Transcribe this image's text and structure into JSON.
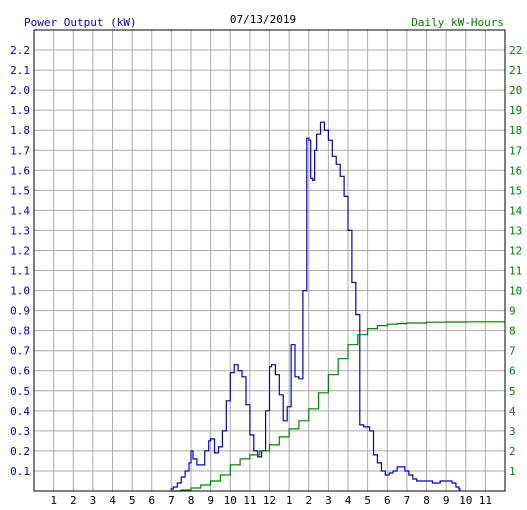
{
  "chart_data": {
    "type": "line",
    "title": "07/13/2019",
    "left_axis_label": "Power Output (kW)",
    "right_axis_label": "Daily kW-Hours",
    "x_tick_labels": [
      "1",
      "2",
      "3",
      "4",
      "5",
      "6",
      "7",
      "8",
      "9",
      "10",
      "11",
      "12",
      "1",
      "2",
      "3",
      "4",
      "5",
      "6",
      "7",
      "8",
      "9",
      "10",
      "11"
    ],
    "y_left_ticks": [
      "0.1",
      "0.2",
      "0.3",
      "0.4",
      "0.5",
      "0.6",
      "0.7",
      "0.8",
      "0.9",
      "1.0",
      "1.1",
      "1.2",
      "1.3",
      "1.4",
      "1.5",
      "1.6",
      "1.7",
      "1.8",
      "1.9",
      "2.0",
      "2.1",
      "2.2"
    ],
    "y_right_ticks": [
      "1",
      "2",
      "3",
      "4",
      "5",
      "6",
      "7",
      "8",
      "9",
      "10",
      "11",
      "12",
      "13",
      "14",
      "15",
      "16",
      "17",
      "18",
      "19",
      "20",
      "21",
      "22"
    ],
    "x_range_hours": [
      0,
      24
    ],
    "y_left_range": [
      0,
      2.3
    ],
    "y_right_range": [
      0,
      23
    ],
    "grid": true,
    "colors": {
      "power": "#0000cc",
      "energy": "#008000",
      "left_axis": "#0000cc",
      "right_axis": "#008000",
      "grid": "#aaaaaa"
    },
    "series": [
      {
        "name": "Power Output (kW)",
        "axis": "left",
        "x": [
          6.95,
          7.1,
          7.3,
          7.5,
          7.7,
          7.9,
          8.0,
          8.1,
          8.3,
          8.5,
          8.7,
          8.9,
          9.0,
          9.2,
          9.4,
          9.6,
          9.8,
          10.0,
          10.2,
          10.4,
          10.6,
          10.8,
          11.0,
          11.2,
          11.4,
          11.6,
          11.8,
          12.0,
          12.1,
          12.3,
          12.5,
          12.7,
          12.9,
          13.1,
          13.3,
          13.5,
          13.7,
          13.9,
          14.0,
          14.1,
          14.2,
          14.3,
          14.4,
          14.6,
          14.8,
          15.0,
          15.2,
          15.4,
          15.6,
          15.8,
          16.0,
          16.2,
          16.4,
          16.6,
          16.8,
          17.0,
          17.1,
          17.3,
          17.5,
          17.7,
          17.9,
          18.1,
          18.3,
          18.5,
          18.7,
          18.9,
          19.1,
          19.3,
          19.5,
          19.7,
          19.9,
          20.1,
          20.3,
          20.5,
          20.7,
          20.9,
          21.1,
          21.3,
          21.5,
          21.65,
          21.7
        ],
        "values": [
          0.01,
          0.02,
          0.04,
          0.07,
          0.1,
          0.14,
          0.2,
          0.16,
          0.13,
          0.13,
          0.2,
          0.25,
          0.26,
          0.19,
          0.22,
          0.3,
          0.45,
          0.59,
          0.63,
          0.6,
          0.57,
          0.43,
          0.28,
          0.2,
          0.17,
          0.2,
          0.4,
          0.62,
          0.63,
          0.58,
          0.48,
          0.35,
          0.42,
          0.73,
          0.57,
          0.56,
          1.0,
          1.76,
          1.75,
          1.56,
          1.55,
          1.7,
          1.78,
          1.84,
          1.8,
          1.75,
          1.67,
          1.63,
          1.57,
          1.47,
          1.3,
          1.04,
          0.88,
          0.33,
          0.32,
          0.32,
          0.3,
          0.18,
          0.14,
          0.1,
          0.08,
          0.09,
          0.1,
          0.12,
          0.12,
          0.1,
          0.08,
          0.06,
          0.05,
          0.05,
          0.05,
          0.05,
          0.04,
          0.04,
          0.05,
          0.05,
          0.05,
          0.04,
          0.02,
          0.01,
          0.0
        ]
      },
      {
        "name": "Daily kW-Hours",
        "axis": "right",
        "x": [
          6.95,
          7.5,
          8.0,
          8.5,
          9.0,
          9.5,
          10.0,
          10.5,
          11.0,
          11.5,
          12.0,
          12.5,
          13.0,
          13.5,
          14.0,
          14.5,
          15.0,
          15.5,
          16.0,
          16.5,
          17.0,
          17.5,
          18.0,
          18.5,
          19.0,
          20.0,
          21.0,
          22.0,
          23.0,
          24.0
        ],
        "values": [
          0.0,
          0.05,
          0.15,
          0.3,
          0.5,
          0.8,
          1.3,
          1.6,
          1.8,
          2.0,
          2.3,
          2.7,
          3.1,
          3.5,
          4.1,
          4.9,
          5.8,
          6.6,
          7.3,
          7.8,
          8.1,
          8.25,
          8.32,
          8.35,
          8.38,
          8.42,
          8.43,
          8.44,
          8.44,
          8.44
        ]
      }
    ]
  }
}
